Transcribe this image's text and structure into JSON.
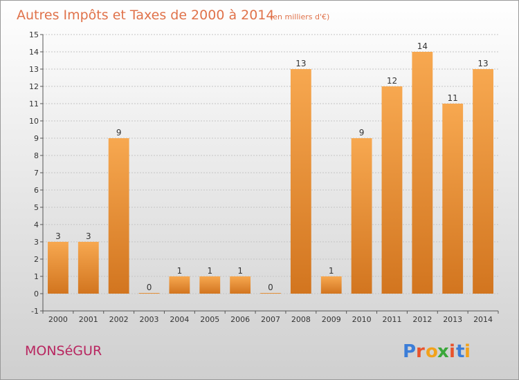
{
  "title": "Autres Impôts et Taxes de 2000 à 2014",
  "subtitle": "(en milliers d'€)",
  "location": "MONSéGUR",
  "brand": {
    "letters": [
      "P",
      "r",
      "o",
      "x",
      "i",
      "t",
      "i"
    ],
    "colors": [
      "#3b7dd8",
      "#e8532c",
      "#f2a21b",
      "#3aa73a",
      "#e8532c",
      "#3b7dd8",
      "#f2a21b"
    ]
  },
  "colors": {
    "bar_light": "#f7a850",
    "bar_dark": "#d2751f",
    "title": "#e0724a",
    "location": "#b8255f",
    "background_top": "#ffffff",
    "background_bottom": "#cfcfcf"
  },
  "chart_data": {
    "type": "bar",
    "categories": [
      "2000",
      "2001",
      "2002",
      "2003",
      "2004",
      "2005",
      "2006",
      "2007",
      "2008",
      "2009",
      "2010",
      "2011",
      "2012",
      "2013",
      "2014"
    ],
    "values": [
      3,
      3,
      9,
      0,
      1,
      1,
      1,
      0,
      13,
      1,
      9,
      12,
      14,
      11,
      13
    ],
    "title": "Autres Impôts et Taxes de 2000 à 2014",
    "xlabel": "",
    "ylabel": "",
    "ylim": [
      -1,
      15
    ],
    "yticks": [
      -1,
      0,
      1,
      2,
      3,
      4,
      5,
      6,
      7,
      8,
      9,
      10,
      11,
      12,
      13,
      14,
      15
    ],
    "grid": true,
    "legend": "none"
  }
}
